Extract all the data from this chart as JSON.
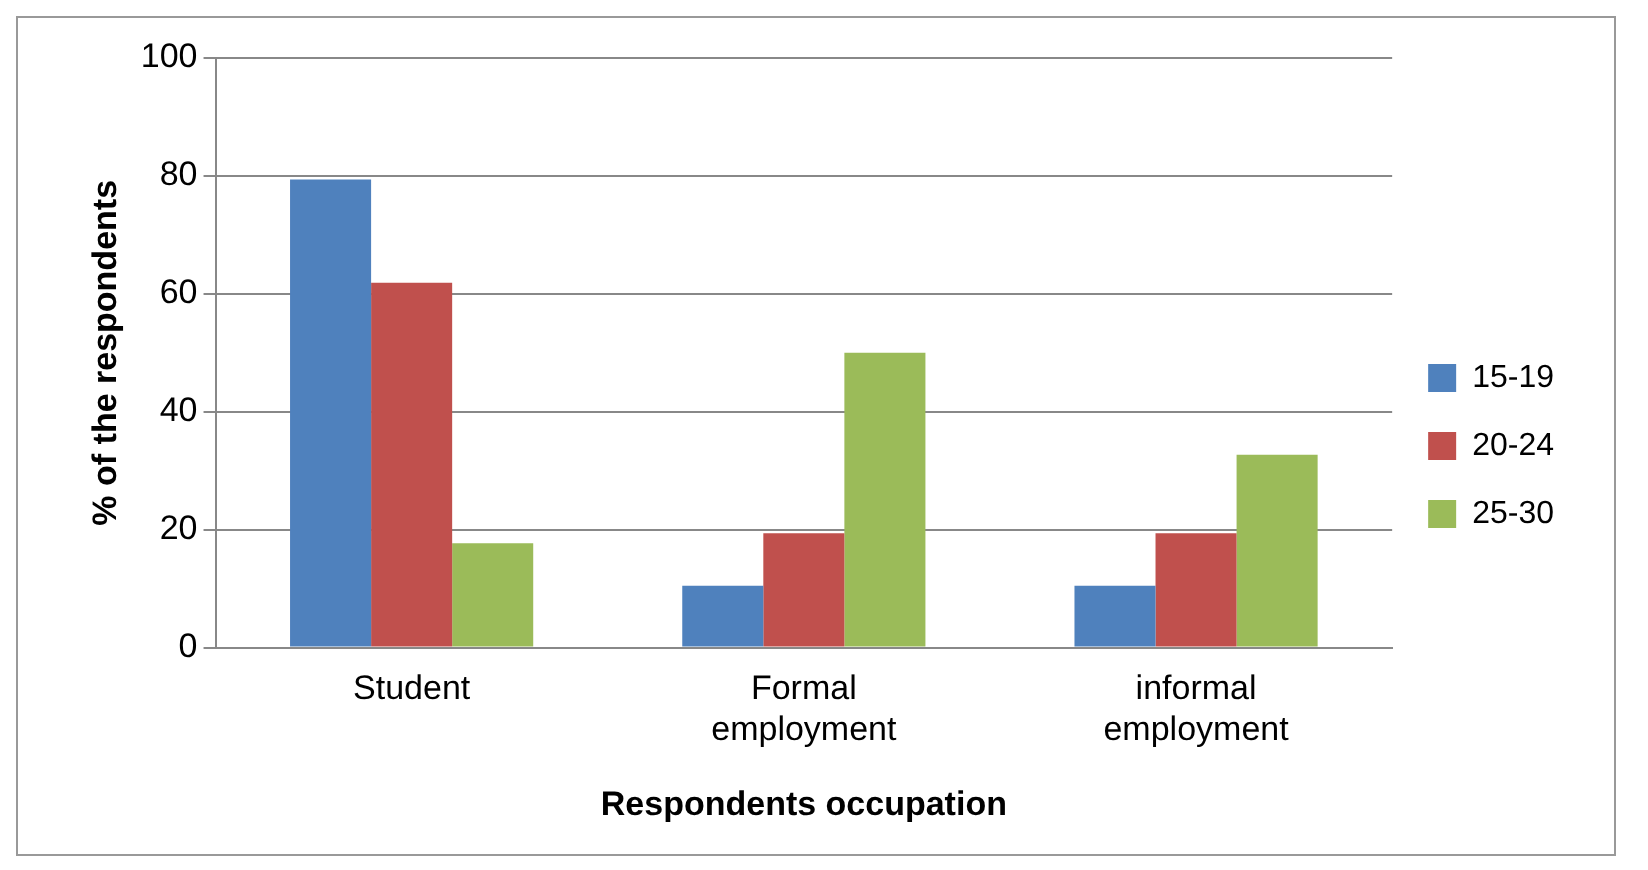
{
  "chart_data": {
    "type": "bar",
    "xlabel": "Respondents occupation",
    "ylabel": "% of the respondents",
    "categories": [
      "Student",
      "Formal employment",
      "informal employment"
    ],
    "series": [
      {
        "name": "15-19",
        "color": "#4f81bd",
        "values": [
          79.4,
          10.5,
          10.5
        ]
      },
      {
        "name": "20-24",
        "color": "#c0504d",
        "values": [
          61.9,
          19.4,
          19.4
        ]
      },
      {
        "name": "25-30",
        "color": "#9bbb59",
        "values": [
          17.7,
          50,
          32.7
        ]
      }
    ],
    "ylim": [
      0,
      100
    ],
    "yticks": [
      0,
      20,
      40,
      60,
      80,
      100
    ],
    "grid": "y",
    "legend": "right"
  }
}
